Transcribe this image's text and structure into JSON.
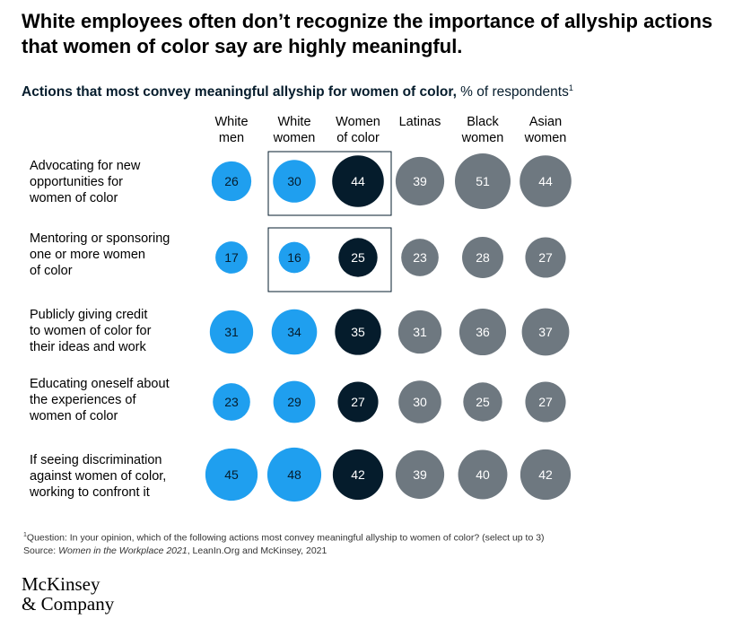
{
  "title": "White employees often don’t recognize the importance of allyship actions that women of color say are highly meaningful.",
  "subtitle": {
    "bold": "Actions that most convey meaningful allyship for women of color,",
    "normal": " % of respondents",
    "marker": "1"
  },
  "chart_data": {
    "type": "bubble-matrix",
    "columns": [
      {
        "label_line1": "White",
        "label_line2": "men"
      },
      {
        "label_line1": "White",
        "label_line2": "women"
      },
      {
        "label_line1": "Women",
        "label_line2": "of color"
      },
      {
        "label_line1": "Latinas",
        "label_line2": ""
      },
      {
        "label_line1": "Black",
        "label_line2": "women"
      },
      {
        "label_line1": "Asian",
        "label_line2": "women"
      }
    ],
    "rows": [
      {
        "label": [
          "Advocating for new",
          "opportunities for",
          "women of color"
        ],
        "values": [
          26,
          30,
          44,
          39,
          51,
          44
        ],
        "highlighted": true
      },
      {
        "label": [
          "Mentoring or sponsoring",
          "one or more women",
          "of color"
        ],
        "values": [
          17,
          16,
          25,
          23,
          28,
          27
        ],
        "highlighted": true
      },
      {
        "label": [
          "Publicly giving credit",
          "to women of color for",
          "their ideas and work"
        ],
        "values": [
          31,
          34,
          35,
          31,
          36,
          37
        ],
        "highlighted": false
      },
      {
        "label": [
          "Educating oneself about",
          "the experiences of",
          "women of color"
        ],
        "values": [
          23,
          29,
          27,
          30,
          25,
          27
        ],
        "highlighted": false
      },
      {
        "label": [
          "If seeing discrimination",
          "against women of color,",
          "working to confront it"
        ],
        "values": [
          45,
          48,
          42,
          39,
          40,
          42
        ],
        "highlighted": false
      }
    ],
    "colors": [
      "#1f9fef",
      "#1f9fef",
      "#051c2c",
      "#6e7880",
      "#6e7880",
      "#6e7880"
    ],
    "label_color": "#ffffff"
  },
  "footnote": {
    "marker": "1",
    "question": "Question: In your opinion, which of the following actions most convey meaningful allyship to women of color? (select up to 3)",
    "source_prefix": "Source: ",
    "source_italic": "Women in the Workplace 2021",
    "source_rest": ", LeanIn.Org and McKinsey, 2021"
  },
  "logo": {
    "line1": "McKinsey",
    "line2": "& Company"
  }
}
